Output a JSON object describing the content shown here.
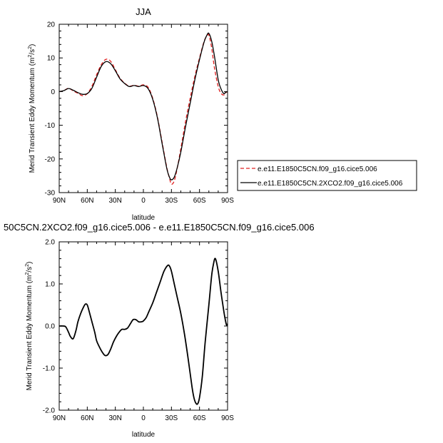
{
  "chart_data": [
    {
      "type": "line",
      "title": "JJA",
      "xlabel": "latitude",
      "ylabel": "Merid Transient Eddy Momentum (m²/s²)",
      "ylabel_text": "Merid Transient Eddy Momentum (m",
      "ylabel_sup": "2",
      "ylabel_mid": "/s",
      "ylabel_sup2": "2",
      "ylabel_end": ")",
      "xlim": [
        90,
        -90
      ],
      "ylim": [
        -30,
        20
      ],
      "x_ticks": [
        {
          "value": 90,
          "label": "90N"
        },
        {
          "value": 60,
          "label": "60N"
        },
        {
          "value": 30,
          "label": "30N"
        },
        {
          "value": 0,
          "label": "0"
        },
        {
          "value": -30,
          "label": "30S"
        },
        {
          "value": -60,
          "label": "60S"
        },
        {
          "value": -90,
          "label": "90S"
        }
      ],
      "y_ticks": [
        {
          "value": 20,
          "label": "20"
        },
        {
          "value": 10,
          "label": "10"
        },
        {
          "value": 0,
          "label": "0"
        },
        {
          "value": -10,
          "label": "-10"
        },
        {
          "value": -20,
          "label": "-20"
        },
        {
          "value": -30,
          "label": "-30"
        }
      ],
      "legend_position": "right",
      "series": [
        {
          "name": "e.e11.E1850C5CN.f09_g16.cice5.006",
          "color": "#e02020",
          "dash": "dashed",
          "x": [
            90,
            85,
            80,
            75,
            70,
            65,
            60,
            55,
            50,
            45,
            40,
            35,
            30,
            25,
            20,
            15,
            10,
            5,
            0,
            -5,
            -10,
            -15,
            -20,
            -25,
            -28,
            -30,
            -33,
            -36,
            -40,
            -45,
            -50,
            -55,
            -60,
            -65,
            -68,
            -70,
            -73,
            -76,
            -80,
            -83,
            -86,
            -88,
            -90
          ],
          "y": [
            0,
            0.3,
            1.0,
            0.2,
            -0.5,
            -1.2,
            -0.6,
            1.6,
            5.0,
            8.0,
            9.6,
            9.0,
            6.5,
            4.0,
            2.5,
            1.6,
            1.9,
            1.6,
            2.0,
            1.3,
            -2.0,
            -7.5,
            -15.0,
            -22.5,
            -25.8,
            -27.5,
            -26.5,
            -23.0,
            -17.0,
            -9.0,
            -2.0,
            4.5,
            10.0,
            15.0,
            16.5,
            16.8,
            13.0,
            7.0,
            1.5,
            -0.5,
            -1.0,
            -0.3,
            -0.1
          ]
        },
        {
          "name": "e.e11.E1850C5CN.2XCO2.f09_g16.cice5.006",
          "color": "#000000",
          "dash": "solid",
          "x": [
            90,
            85,
            80,
            75,
            70,
            65,
            60,
            55,
            50,
            45,
            40,
            35,
            30,
            25,
            20,
            15,
            10,
            5,
            0,
            -5,
            -10,
            -15,
            -20,
            -25,
            -28,
            -30,
            -33,
            -36,
            -40,
            -45,
            -50,
            -55,
            -60,
            -65,
            -68,
            -70,
            -73,
            -76,
            -80,
            -83,
            -86,
            -88,
            -90
          ],
          "y": [
            0,
            0.3,
            0.9,
            0.4,
            -0.3,
            -0.8,
            -0.6,
            1.0,
            4.3,
            7.5,
            8.9,
            8.3,
            6.2,
            3.8,
            2.4,
            1.5,
            1.8,
            1.5,
            1.8,
            0.9,
            -2.3,
            -7.8,
            -15.4,
            -22.8,
            -25.5,
            -26.2,
            -25.4,
            -22.8,
            -18.0,
            -10.5,
            -3.5,
            3.5,
            9.5,
            14.8,
            16.8,
            17.3,
            15.0,
            10.5,
            3.5,
            0.8,
            -0.6,
            -0.2,
            0
          ]
        }
      ]
    },
    {
      "type": "line",
      "title": "50C5CN.2XCO2.f09_g16.cice5.006 - e.e11.E1850C5CN.f09_g16.cice5.006",
      "xlabel": "latitude",
      "ylabel": "Merid Transient Eddy Momentum (m²/s²)",
      "ylabel_text": "Merid Transient Eddy Momentum (m",
      "ylabel_sup": "2",
      "ylabel_mid": "/s",
      "ylabel_sup2": "2",
      "ylabel_end": ")",
      "xlim": [
        90,
        -90
      ],
      "ylim": [
        -2.0,
        2.0
      ],
      "x_ticks": [
        {
          "value": 90,
          "label": "90N"
        },
        {
          "value": 60,
          "label": "60N"
        },
        {
          "value": 30,
          "label": "30N"
        },
        {
          "value": 0,
          "label": "0"
        },
        {
          "value": -30,
          "label": "30S"
        },
        {
          "value": -60,
          "label": "60S"
        },
        {
          "value": -90,
          "label": "90S"
        }
      ],
      "y_ticks": [
        {
          "value": 2.0,
          "label": "2.0"
        },
        {
          "value": 1.0,
          "label": "1.0"
        },
        {
          "value": 0.0,
          "label": "0.0"
        },
        {
          "value": -1.0,
          "label": "-1.0"
        },
        {
          "value": -2.0,
          "label": "-2.0"
        }
      ],
      "series": [
        {
          "color": "#000000",
          "dash": "solid",
          "x": [
            90,
            86,
            83,
            80,
            78,
            75,
            72,
            70,
            67,
            64,
            62,
            60,
            58,
            55,
            52,
            50,
            47,
            44,
            41,
            38,
            35,
            32,
            29,
            26,
            23,
            20,
            17,
            14,
            11,
            8,
            5,
            2,
            0,
            -3,
            -6,
            -10,
            -14,
            -18,
            -22,
            -26,
            -28,
            -30,
            -33,
            -36,
            -40,
            -44,
            -48,
            -52,
            -54,
            -56,
            -58,
            -60,
            -63,
            -66,
            -70,
            -73,
            -75,
            -77,
            -80,
            -83,
            -86,
            -88,
            -89,
            -90
          ],
          "y": [
            0,
            0,
            -0.02,
            -0.15,
            -0.25,
            -0.3,
            -0.1,
            0.1,
            0.3,
            0.45,
            0.52,
            0.5,
            0.35,
            0.1,
            -0.15,
            -0.35,
            -0.5,
            -0.62,
            -0.7,
            -0.68,
            -0.55,
            -0.38,
            -0.25,
            -0.15,
            -0.08,
            -0.08,
            -0.05,
            0.05,
            0.15,
            0.15,
            0.1,
            0.1,
            0.12,
            0.2,
            0.35,
            0.55,
            0.8,
            1.05,
            1.3,
            1.44,
            1.42,
            1.3,
            1.0,
            0.7,
            0.3,
            -0.2,
            -0.8,
            -1.45,
            -1.7,
            -1.83,
            -1.85,
            -1.7,
            -1.2,
            -0.4,
            0.5,
            1.2,
            1.48,
            1.6,
            1.3,
            0.8,
            0.35,
            0.1,
            0.02,
            0.05
          ]
        }
      ]
    }
  ]
}
